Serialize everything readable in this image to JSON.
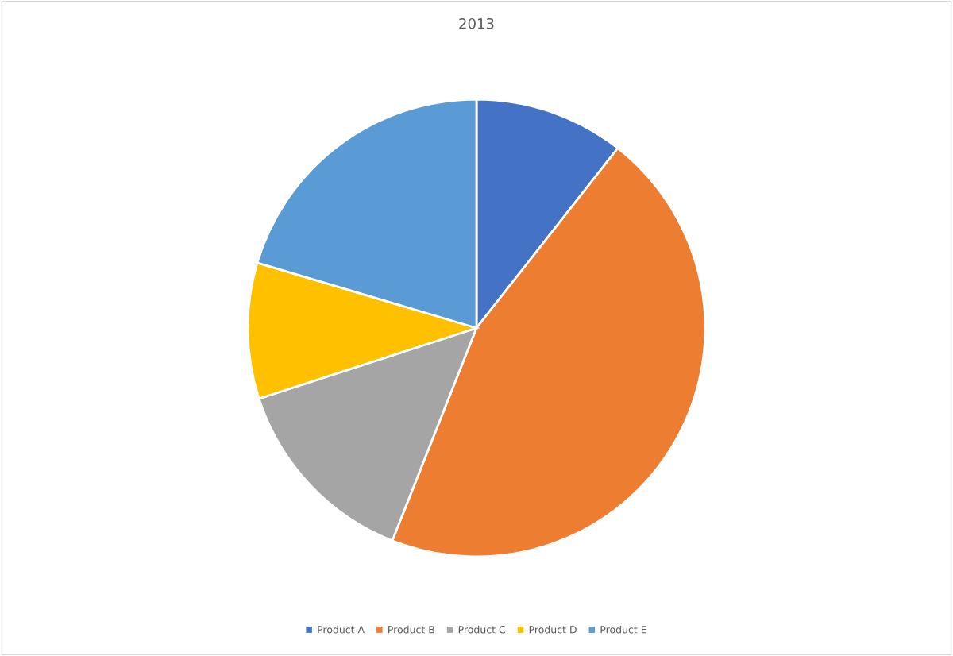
{
  "chart_data": {
    "type": "pie",
    "title": "2013",
    "categories": [
      "Product A",
      "Product B",
      "Product C",
      "Product D",
      "Product E"
    ],
    "values": [
      10.6,
      45.4,
      14.0,
      9.6,
      20.4
    ],
    "colors": [
      "#4472c4",
      "#ed7d31",
      "#a5a5a5",
      "#ffc000",
      "#5b9bd5"
    ],
    "legend": "bottom"
  }
}
